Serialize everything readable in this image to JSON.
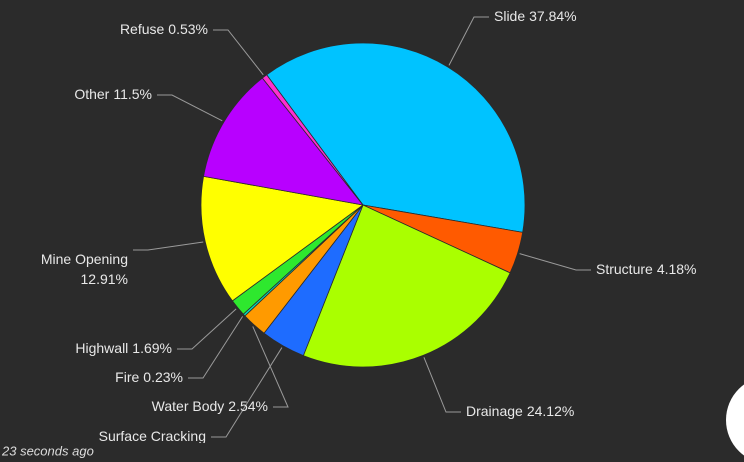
{
  "chart_data": {
    "type": "pie",
    "categories": [
      "Slide",
      "Structure",
      "Drainage",
      "Surface Cracking",
      "Water Body",
      "Fire",
      "Highwall",
      "Mine Opening",
      "Other",
      "Refuse"
    ],
    "values": [
      37.84,
      4.18,
      24.12,
      4.46,
      2.54,
      0.23,
      1.69,
      12.91,
      11.5,
      0.53
    ],
    "value_labels": [
      "37.84%",
      "4.18%",
      "24.12%",
      null,
      "2.54%",
      "0.23%",
      "1.69%",
      "12.91%",
      "11.5%",
      "0.53%"
    ],
    "colors": [
      "#00c3ff",
      "#ff5a00",
      "#aaff00",
      "#1e6cff",
      "#ff9a00",
      "#00e0c0",
      "#2ee82e",
      "#ffff00",
      "#b800ff",
      "#ff2fd0"
    ]
  },
  "footer": {
    "updated": "23 seconds ago"
  }
}
